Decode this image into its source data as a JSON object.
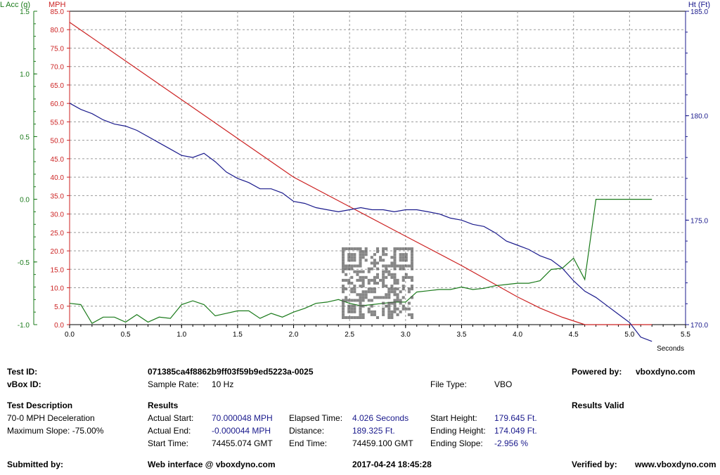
{
  "chart_data": {
    "type": "line",
    "axes": {
      "left_acc": {
        "label": "L Acc (g)",
        "min": -1.0,
        "max": 1.5,
        "ticks": [
          "-1.0",
          "-0.5",
          "0.0",
          "0.5",
          "1.0",
          "1.5"
        ],
        "color": "#1a7a1a"
      },
      "left_mph": {
        "label": "MPH",
        "min": 0,
        "max": 85,
        "ticks": [
          "0.0",
          "5.0",
          "10.0",
          "15.0",
          "20.0",
          "25.0",
          "30.0",
          "35.0",
          "40.0",
          "45.0",
          "50.0",
          "55.0",
          "60.0",
          "65.0",
          "70.0",
          "75.0",
          "80.0",
          "85.0"
        ],
        "color": "#cc2222"
      },
      "right_ht": {
        "label": "Ht (Ft)",
        "min": 170,
        "max": 185,
        "ticks": [
          "170.0",
          "175.0",
          "180.0",
          "185.0"
        ],
        "color": "#1a1a8c"
      },
      "x": {
        "label": "Seconds",
        "min": 0,
        "max": 5.5,
        "ticks": [
          "0.0",
          "0.5",
          "1.0",
          "1.5",
          "2.0",
          "2.5",
          "3.0",
          "3.5",
          "4.0",
          "4.5",
          "5.0",
          "5.5"
        ]
      }
    },
    "grid": true,
    "series": [
      {
        "axis": "left_mph",
        "color": "#cc2222",
        "x": [
          0,
          0.5,
          1.0,
          1.5,
          2.0,
          2.5,
          3.0,
          3.5,
          4.0,
          4.2,
          4.4,
          4.6,
          5.2
        ],
        "y": [
          82,
          71.5,
          61,
          50.5,
          40,
          32,
          24,
          16,
          7.5,
          4.5,
          2,
          0,
          0
        ]
      },
      {
        "axis": "right_ht",
        "color": "#1a1a8c",
        "x": [
          0,
          0.1,
          0.2,
          0.3,
          0.4,
          0.5,
          0.6,
          0.7,
          0.8,
          0.9,
          1.0,
          1.1,
          1.2,
          1.3,
          1.4,
          1.5,
          1.6,
          1.7,
          1.8,
          1.9,
          2.0,
          2.1,
          2.2,
          2.3,
          2.4,
          2.5,
          2.6,
          2.7,
          2.8,
          2.9,
          3.0,
          3.1,
          3.2,
          3.3,
          3.4,
          3.5,
          3.6,
          3.7,
          3.8,
          3.9,
          4.0,
          4.1,
          4.2,
          4.3,
          4.4,
          4.5,
          4.6,
          4.7,
          4.8,
          4.9,
          5.0,
          5.1,
          5.2
        ],
        "y": [
          180.6,
          180.3,
          180.1,
          179.8,
          179.6,
          179.5,
          179.3,
          179.0,
          178.7,
          178.4,
          178.1,
          178.0,
          178.2,
          177.8,
          177.3,
          177.0,
          176.8,
          176.5,
          176.5,
          176.3,
          175.9,
          175.8,
          175.6,
          175.5,
          175.4,
          175.5,
          175.6,
          175.5,
          175.5,
          175.4,
          175.5,
          175.5,
          175.4,
          175.3,
          175.1,
          175.0,
          174.8,
          174.7,
          174.4,
          174.0,
          173.8,
          173.6,
          173.3,
          173.1,
          172.7,
          172.1,
          171.6,
          171.3,
          170.9,
          170.5,
          170.1,
          169.4,
          169.2
        ]
      },
      {
        "axis": "left_acc",
        "color": "#1a7a1a",
        "x": [
          0,
          0.1,
          0.2,
          0.3,
          0.4,
          0.5,
          0.6,
          0.7,
          0.8,
          0.9,
          1.0,
          1.1,
          1.2,
          1.3,
          1.4,
          1.5,
          1.6,
          1.7,
          1.8,
          1.9,
          2.0,
          2.1,
          2.2,
          2.3,
          2.4,
          2.5,
          2.6,
          2.7,
          2.8,
          2.9,
          3.0,
          3.1,
          3.2,
          3.3,
          3.4,
          3.5,
          3.6,
          3.7,
          3.8,
          3.9,
          4.0,
          4.1,
          4.2,
          4.3,
          4.4,
          4.5,
          4.6,
          4.7,
          4.8,
          4.9,
          5.0,
          5.1,
          5.2
        ],
        "y": [
          -0.83,
          -0.84,
          -0.99,
          -0.94,
          -0.94,
          -0.98,
          -0.92,
          -0.98,
          -0.94,
          -0.95,
          -0.84,
          -0.81,
          -0.84,
          -0.93,
          -0.91,
          -0.89,
          -0.89,
          -0.95,
          -0.91,
          -0.94,
          -0.9,
          -0.87,
          -0.83,
          -0.82,
          -0.8,
          -0.83,
          -0.85,
          -0.84,
          -0.83,
          -0.82,
          -0.82,
          -0.74,
          -0.73,
          -0.72,
          -0.72,
          -0.7,
          -0.72,
          -0.71,
          -0.69,
          -0.68,
          -0.67,
          -0.67,
          -0.65,
          -0.56,
          -0.55,
          -0.47,
          -0.64,
          0.0,
          0.0,
          0.0,
          0.0,
          0.0,
          0.0
        ]
      }
    ]
  },
  "info": {
    "test_id_label": "Test ID:",
    "test_id_value": "071385ca4f8862b9ff03f59b9ed5223a-0025",
    "powered_by_label": "Powered by:",
    "powered_by_value": "vboxdyno.com",
    "vbox_id_label": "vBox ID:",
    "sample_rate_label": "Sample Rate:",
    "sample_rate_value": "10 Hz",
    "file_type_label": "File Type:",
    "file_type_value": "VBO",
    "test_description_label": "Test Description",
    "results_label": "Results",
    "results_valid": "Results Valid",
    "description_line1": "70-0 MPH Deceleration",
    "description_line2": "Maximum Slope:  -75.00%",
    "actual_start_label": "Actual Start:",
    "actual_start_value": "70.000048 MPH",
    "elapsed_time_label": "Elapsed Time:",
    "elapsed_time_value": "4.026 Seconds",
    "start_height_label": "Start Height:",
    "start_height_value": "179.645 Ft.",
    "actual_end_label": "Actual End:",
    "actual_end_value": "-0.000044 MPH",
    "distance_label": "Distance:",
    "distance_value": "189.325 Ft.",
    "ending_height_label": "Ending Height:",
    "ending_height_value": "174.049 Ft.",
    "start_time_label": "Start Time:",
    "start_time_value": "74455.074 GMT",
    "end_time_label": "End Time:",
    "end_time_value": "74459.100 GMT",
    "ending_slope_label": "Ending Slope:",
    "ending_slope_value": "-2.956 %",
    "submitted_by_label": "Submitted by:",
    "web_interface": "Web interface @ vboxdyno.com",
    "date_time": "2017-04-24 18:45:28",
    "verified_by_label": "Verified by:",
    "verified_by_value": "www.vboxdyno.com"
  }
}
